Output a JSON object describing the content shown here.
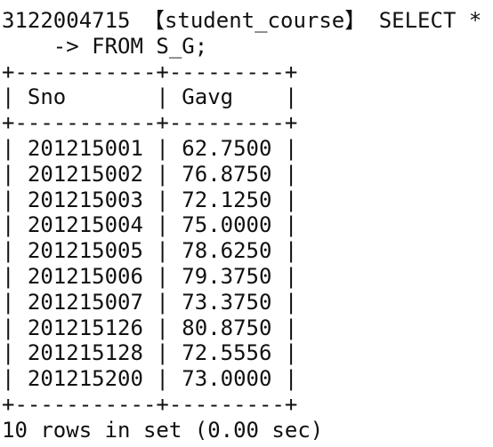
{
  "session": {
    "user": "3122004715",
    "db_open": "【",
    "database": "student_course",
    "db_close": "】",
    "command_line1": "SELECT *",
    "continuation_prompt": "    ->",
    "command_line2": "FROM S_G;"
  },
  "table": {
    "border_top": "+-----------+---------+",
    "columns": [
      "Sno",
      "Gavg"
    ],
    "header_row": "| Sno       | Gavg    |",
    "border_mid": "+-----------+---------+",
    "rows": [
      "| 201215001 | 62.7500 |",
      "| 201215002 | 76.8750 |",
      "| 201215003 | 72.1250 |",
      "| 201215004 | 75.0000 |",
      "| 201215005 | 78.6250 |",
      "| 201215006 | 79.3750 |",
      "| 201215007 | 73.3750 |",
      "| 201215126 | 80.8750 |",
      "| 201215128 | 72.5556 |",
      "| 201215200 | 73.0000 |"
    ],
    "border_bottom": "+-----------+---------+"
  },
  "result_summary": "10 rows in set (0.00 sec)"
}
